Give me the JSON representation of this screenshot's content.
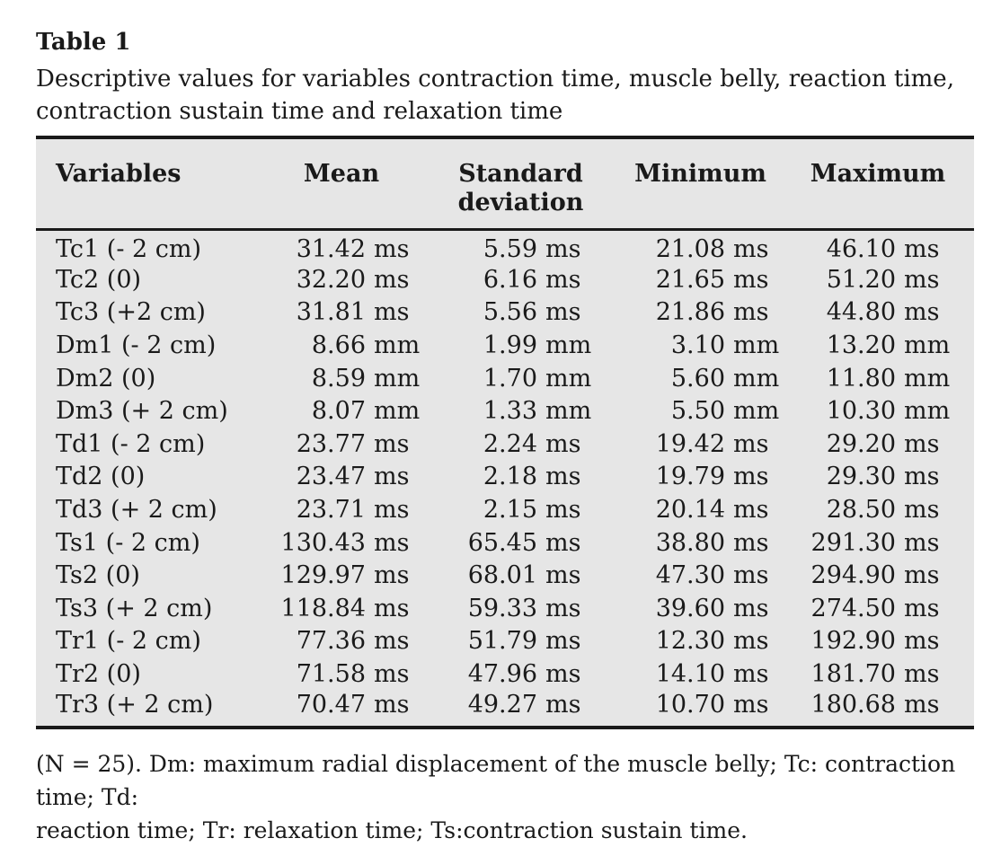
{
  "title": "Table 1",
  "caption": {
    "line1": "Descriptive values for variables contraction time, muscle belly, reaction time,",
    "line2": "contraction sustain time and relaxation time"
  },
  "colors": {
    "page_background": "#ffffff",
    "table_background": "#e6e6e6",
    "text": "#1a1a1a",
    "rule": "#1a1a1a"
  },
  "table": {
    "headers": [
      "Variables",
      "Mean",
      "Standard deviation",
      "Minimum",
      "Maximum"
    ],
    "rows": [
      {
        "variable": "Tc1 (- 2 cm)",
        "mean": "31.42",
        "sd": "5.59",
        "min": "21.08",
        "max": "46.10",
        "unit": "ms"
      },
      {
        "variable": "Tc2 (0)",
        "mean": "32.20",
        "sd": "6.16",
        "min": "21.65",
        "max": "51.20",
        "unit": "ms"
      },
      {
        "variable": "Tc3 (+2 cm)",
        "mean": "31.81",
        "sd": "5.56",
        "min": "21.86",
        "max": "44.80",
        "unit": "ms"
      },
      {
        "variable": "Dm1 (- 2 cm)",
        "mean": "8.66",
        "sd": "1.99",
        "min": "3.10",
        "max": "13.20",
        "unit": "mm"
      },
      {
        "variable": "Dm2 (0)",
        "mean": "8.59",
        "sd": "1.70",
        "min": "5.60",
        "max": "11.80",
        "unit": "mm"
      },
      {
        "variable": "Dm3 (+ 2 cm)",
        "mean": "8.07",
        "sd": "1.33",
        "min": "5.50",
        "max": "10.30",
        "unit": "mm"
      },
      {
        "variable": "Td1 (- 2 cm)",
        "mean": "23.77",
        "sd": "2.24",
        "min": "19.42",
        "max": "29.20",
        "unit": "ms"
      },
      {
        "variable": "Td2 (0)",
        "mean": "23.47",
        "sd": "2.18",
        "min": "19.79",
        "max": "29.30",
        "unit": "ms"
      },
      {
        "variable": "Td3 (+ 2 cm)",
        "mean": "23.71",
        "sd": "2.15",
        "min": "20.14",
        "max": "28.50",
        "unit": "ms"
      },
      {
        "variable": "Ts1 (- 2 cm)",
        "mean": "130.43",
        "sd": "65.45",
        "min": "38.80",
        "max": "291.30",
        "unit": "ms"
      },
      {
        "variable": "Ts2 (0)",
        "mean": "129.97",
        "sd": "68.01",
        "min": "47.30",
        "max": "294.90",
        "unit": "ms"
      },
      {
        "variable": "Ts3 (+ 2 cm)",
        "mean": "118.84",
        "sd": "59.33",
        "min": "39.60",
        "max": "274.50",
        "unit": "ms"
      },
      {
        "variable": "Tr1 (- 2 cm)",
        "mean": "77.36",
        "sd": "51.79",
        "min": "12.30",
        "max": "192.90",
        "unit": "ms"
      },
      {
        "variable": "Tr2 (0)",
        "mean": "71.58",
        "sd": "47.96",
        "min": "14.10",
        "max": "181.70",
        "unit": "ms"
      },
      {
        "variable": "Tr3 (+ 2 cm)",
        "mean": "70.47",
        "sd": "49.27",
        "min": "10.70",
        "max": "180.68",
        "unit": "ms"
      }
    ]
  },
  "footnote": {
    "line1": "(N = 25). Dm: maximum radial displacement of the muscle belly; Tc: contraction time; Td:",
    "line2": "reaction time; Tr: relaxation time; Ts:contraction sustain time."
  }
}
